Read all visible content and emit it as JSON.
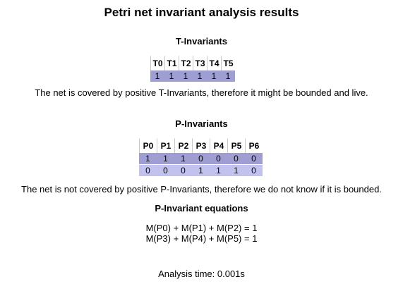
{
  "title": "Petri net invariant analysis results",
  "t_invariants": {
    "heading": "T-Invariants",
    "headers": [
      "T0",
      "T1",
      "T2",
      "T3",
      "T4",
      "T5"
    ],
    "rows": [
      [
        "1",
        "1",
        "1",
        "1",
        "1",
        "1"
      ]
    ],
    "message": "The net is covered by positive T-Invariants, therefore it might be bounded and live."
  },
  "p_invariants": {
    "heading": "P-Invariants",
    "headers": [
      "P0",
      "P1",
      "P2",
      "P3",
      "P4",
      "P5",
      "P6"
    ],
    "rows": [
      [
        "1",
        "1",
        "1",
        "0",
        "0",
        "0",
        "0"
      ],
      [
        "0",
        "0",
        "0",
        "1",
        "1",
        "1",
        "0"
      ]
    ],
    "message": "The net is not covered by positive P-Invariants, therefore we do not know if it is bounded."
  },
  "equations": {
    "heading": "P-Invariant equations",
    "lines": [
      "M(P0) + M(P1) + M(P2) = 1",
      "M(P3) + M(P4) + M(P5) = 1"
    ]
  },
  "analysis_time": "Analysis time: 0.001s",
  "colors": {
    "row_dark": "#9e9ed3",
    "row_light": "#c2c2ee",
    "header_border": "#c8c8c8"
  }
}
